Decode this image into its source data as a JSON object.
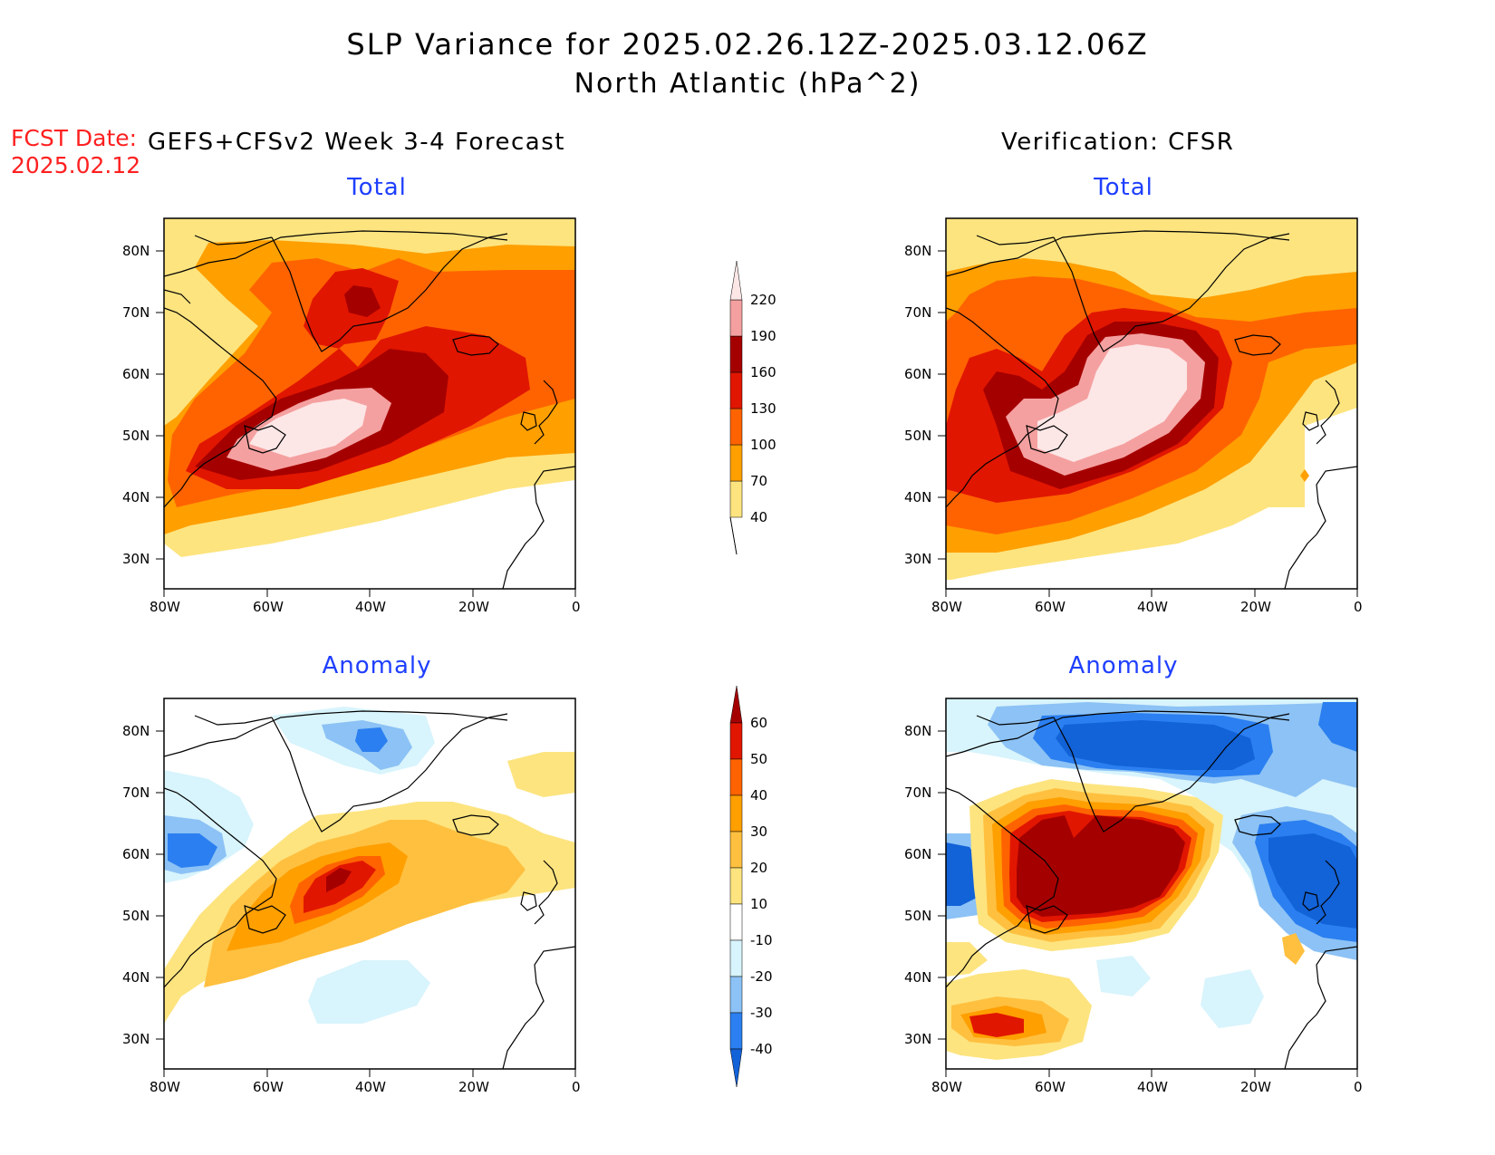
{
  "title": "SLP Variance for 2025.02.26.12Z-2025.03.12.06Z",
  "subtitle": "North Atlantic (hPa^2)",
  "fcst_label": "FCST Date:",
  "fcst_date": "2025.02.12",
  "left_column_title": "GEFS+CFSv2 Week 3-4 Forecast",
  "right_column_title": "Verification: CFSR",
  "panels": [
    {
      "label": "Total"
    },
    {
      "label": "Total"
    },
    {
      "label": "Anomaly"
    },
    {
      "label": "Anomaly"
    }
  ],
  "lat_ticks": [
    "80N",
    "70N",
    "60N",
    "50N",
    "40N",
    "30N"
  ],
  "lon_ticks": [
    "80W",
    "60W",
    "40W",
    "20W",
    "0"
  ],
  "total_colorbar": {
    "levels": [
      "40",
      "70",
      "100",
      "130",
      "160",
      "190",
      "220"
    ],
    "colors": [
      "#fde47f",
      "#ff9f00",
      "#ff6300",
      "#e11600",
      "#a50000",
      "#f5a0a0",
      "#fde6e6"
    ]
  },
  "anomaly_colorbar": {
    "levels": [
      "-40",
      "-30",
      "-20",
      "-10",
      "10",
      "20",
      "30",
      "40",
      "50",
      "60"
    ],
    "colors": [
      "#1262d8",
      "#2b7ff0",
      "#8cc2f5",
      "#d8f4fc",
      "#ffffff",
      "#fde47f",
      "#ffc040",
      "#ff9f00",
      "#ff6300",
      "#e11600",
      "#a50000"
    ]
  }
}
